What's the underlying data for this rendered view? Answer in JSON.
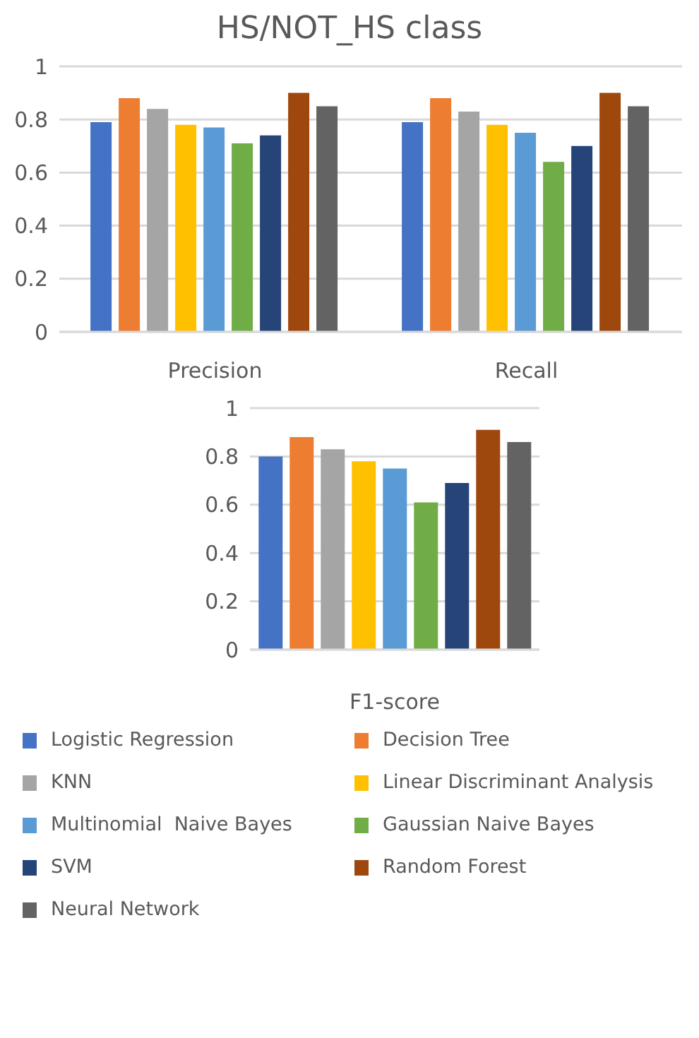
{
  "chart_data": [
    {
      "type": "bar",
      "title": "HS/NOT_HS class",
      "categories": [
        "Precision",
        "Recall"
      ],
      "series": [
        {
          "name": "Logistic Regression",
          "color": "#4472c4",
          "values": [
            0.79,
            0.79
          ]
        },
        {
          "name": "Decision Tree",
          "color": "#ed7d31",
          "values": [
            0.88,
            0.88
          ]
        },
        {
          "name": "KNN",
          "color": "#a5a5a5",
          "values": [
            0.84,
            0.83
          ]
        },
        {
          "name": "Linear Discriminant Analysis",
          "color": "#ffc000",
          "values": [
            0.78,
            0.78
          ]
        },
        {
          "name": "Multinomial  Naive Bayes",
          "color": "#5b9bd5",
          "values": [
            0.77,
            0.75
          ]
        },
        {
          "name": "Gaussian Naive Bayes",
          "color": "#70ad47",
          "values": [
            0.71,
            0.64
          ]
        },
        {
          "name": "SVM",
          "color": "#264478",
          "values": [
            0.74,
            0.7
          ]
        },
        {
          "name": "Random Forest",
          "color": "#9e480e",
          "values": [
            0.9,
            0.9
          ]
        },
        {
          "name": "Neural Network",
          "color": "#636363",
          "values": [
            0.85,
            0.85
          ]
        }
      ],
      "ylim": [
        0,
        1
      ],
      "yticks": [
        0,
        0.2,
        0.4,
        0.6,
        0.8,
        1
      ],
      "grid": "y",
      "legend": "bottom"
    },
    {
      "type": "bar",
      "xlabel": "F1-score",
      "categories": [
        null
      ],
      "series": [
        {
          "color": "#4472c4",
          "values": [
            0.8
          ]
        },
        {
          "color": "#ed7d31",
          "values": [
            0.88
          ]
        },
        {
          "color": "#a5a5a5",
          "values": [
            0.83
          ]
        },
        {
          "color": "#ffc000",
          "values": [
            0.78
          ]
        },
        {
          "color": "#5b9bd5",
          "values": [
            0.75
          ]
        },
        {
          "color": "#70ad47",
          "values": [
            0.61
          ]
        },
        {
          "color": "#264478",
          "values": [
            0.69
          ]
        },
        {
          "color": "#9e480e",
          "values": [
            0.91
          ]
        },
        {
          "color": "#636363",
          "values": [
            0.86
          ]
        }
      ],
      "ylim": [
        0,
        1
      ],
      "yticks": [
        0,
        0.2,
        0.4,
        0.6,
        0.8,
        1
      ],
      "grid": "y"
    }
  ]
}
